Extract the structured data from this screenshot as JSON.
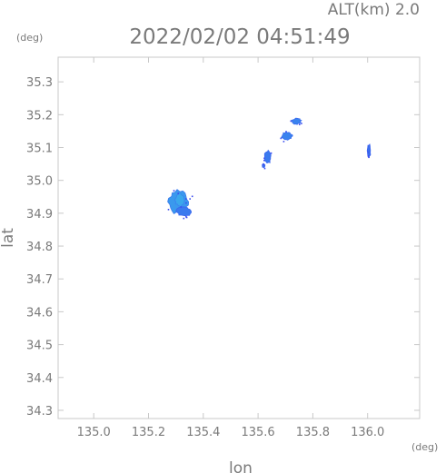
{
  "header": {
    "altitude": "ALT(km) 2.0",
    "timestamp": "2022/02/02 04:51:49"
  },
  "chart_data": {
    "type": "heatmap",
    "title": "",
    "xlabel": "lon",
    "ylabel": "lat",
    "x_unit": "(deg)",
    "y_unit": "(deg)",
    "xlim": [
      134.87,
      136.19
    ],
    "ylim": [
      34.275,
      35.375
    ],
    "x_ticks": [
      135.0,
      135.2,
      135.4,
      135.6,
      135.8,
      136.0
    ],
    "x_tick_labels": [
      "135.0",
      "135.2",
      "135.4",
      "135.6",
      "135.8",
      "136.0"
    ],
    "y_ticks": [
      34.3,
      34.4,
      34.5,
      34.6,
      34.7,
      34.8,
      34.9,
      35.0,
      35.1,
      35.2,
      35.3
    ],
    "y_tick_labels": [
      "34.3",
      "34.4",
      "34.5",
      "34.6",
      "34.7",
      "34.8",
      "34.9",
      "35.0",
      "35.1",
      "35.2",
      "35.3"
    ],
    "grid": false,
    "colors": {
      "axis": "#c8c8c8",
      "echo_weak": "#3a4cf0",
      "echo_strong": "#3aa7ec"
    },
    "echoes": [
      {
        "name": "echo-main",
        "lon": 135.31,
        "lat": 34.935,
        "rlon": 0.038,
        "rlat": 0.037,
        "intensity": 0.85
      },
      {
        "name": "echo-main-core",
        "lon": 135.315,
        "lat": 34.94,
        "rlon": 0.018,
        "rlat": 0.02,
        "intensity": 1.0
      },
      {
        "name": "echo-main-tail",
        "lon": 135.33,
        "lat": 34.905,
        "rlon": 0.028,
        "rlat": 0.014,
        "intensity": 0.5
      },
      {
        "name": "echo-ne-1",
        "lon": 135.74,
        "lat": 35.18,
        "rlon": 0.018,
        "rlat": 0.009,
        "intensity": 0.6
      },
      {
        "name": "echo-ne-2",
        "lon": 135.705,
        "lat": 35.135,
        "rlon": 0.02,
        "rlat": 0.013,
        "intensity": 0.6
      },
      {
        "name": "echo-ne-3",
        "lon": 135.635,
        "lat": 35.07,
        "rlon": 0.012,
        "rlat": 0.02,
        "intensity": 0.5
      },
      {
        "name": "echo-ne-4",
        "lon": 135.62,
        "lat": 35.045,
        "rlon": 0.005,
        "rlat": 0.006,
        "intensity": 0.4
      },
      {
        "name": "echo-east",
        "lon": 136.005,
        "lat": 35.09,
        "rlon": 0.006,
        "rlat": 0.02,
        "intensity": 0.4
      }
    ]
  }
}
